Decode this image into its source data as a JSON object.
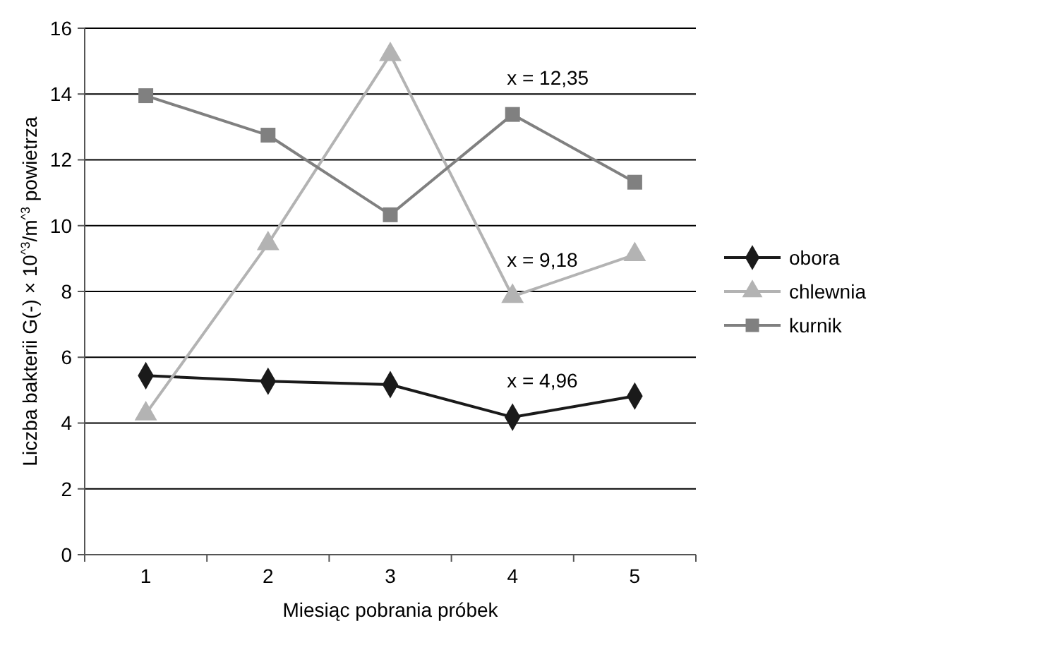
{
  "chart_data": {
    "type": "line",
    "xlabel": "Miesiąc pobrania próbek",
    "ylabel": "Liczba bakterii G(-) × 10$^{^3}$/m$^{^3}$ powietrza",
    "categories": [
      "1",
      "2",
      "3",
      "4",
      "5"
    ],
    "ylim": [
      0,
      16
    ],
    "yticks": [
      0,
      2,
      4,
      6,
      8,
      10,
      12,
      14,
      16
    ],
    "grid": "y",
    "legend": "right",
    "line_style": "solid",
    "series": [
      {
        "name": "obora",
        "color": "#1a1a1a",
        "marker": "diamond",
        "values": [
          5.44,
          5.27,
          5.17,
          4.18,
          4.82
        ]
      },
      {
        "name": "chlewnia",
        "color": "#b3b3b3",
        "marker": "triangle",
        "values": [
          4.28,
          9.45,
          15.2,
          7.85,
          9.12
        ]
      },
      {
        "name": "kurnik",
        "color": "#808080",
        "marker": "square",
        "values": [
          13.95,
          12.75,
          10.33,
          13.38,
          11.32
        ]
      }
    ],
    "annotations": [
      "x = 12,35",
      "x = 9,18",
      "x = 4,96"
    ]
  }
}
